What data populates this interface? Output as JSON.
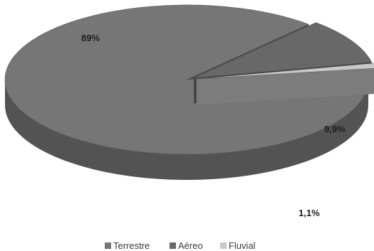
{
  "chart_data": {
    "type": "pie",
    "style": "3d-exploded",
    "categories": [
      "Terrestre",
      "Aéreo",
      "Fluvial"
    ],
    "values": [
      89,
      9.9,
      1.1
    ],
    "labels": [
      "89%",
      "9,9%",
      "1,1%"
    ],
    "colors": [
      "#767676",
      "#686868",
      "#c8c8c8"
    ],
    "legend_position": "bottom"
  }
}
